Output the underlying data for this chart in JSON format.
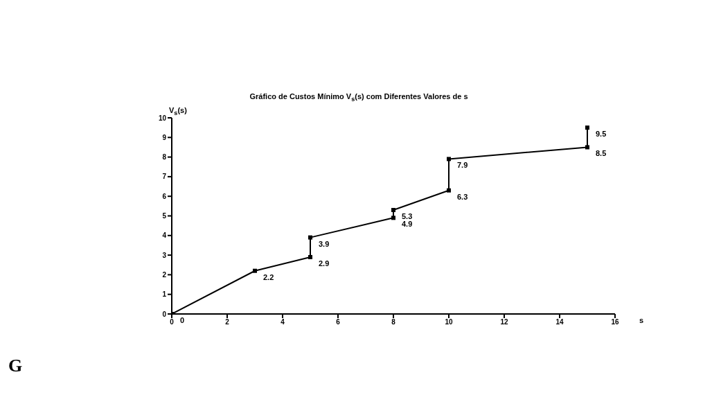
{
  "chart_data": {
    "type": "line",
    "title": "Gráfico de Custos Mínimo V$_{s}$(s) com Diferentes Valores de s",
    "xlabel": "s",
    "ylabel": "V$_{s}$(s)",
    "x": [
      0,
      3,
      5,
      5,
      8,
      8,
      10,
      10,
      15,
      15
    ],
    "series": [
      {
        "color": "#000000",
        "values": [
          0,
          2.2,
          2.9,
          3.9,
          4.9,
          5.3,
          6.3,
          7.9,
          8.5,
          9.5
        ]
      }
    ],
    "xlim": [
      0,
      16
    ],
    "xticks": [
      0,
      2,
      4,
      6,
      8,
      10,
      12,
      14,
      16
    ],
    "ylim": [
      0,
      10
    ],
    "yticks": [
      0,
      1,
      2,
      3,
      4,
      5,
      6,
      7,
      8,
      9,
      10
    ],
    "data_labels": true,
    "grid": false,
    "legend": false,
    "marker": "square",
    "line_style": "solid",
    "annotations": [
      "G"
    ]
  }
}
